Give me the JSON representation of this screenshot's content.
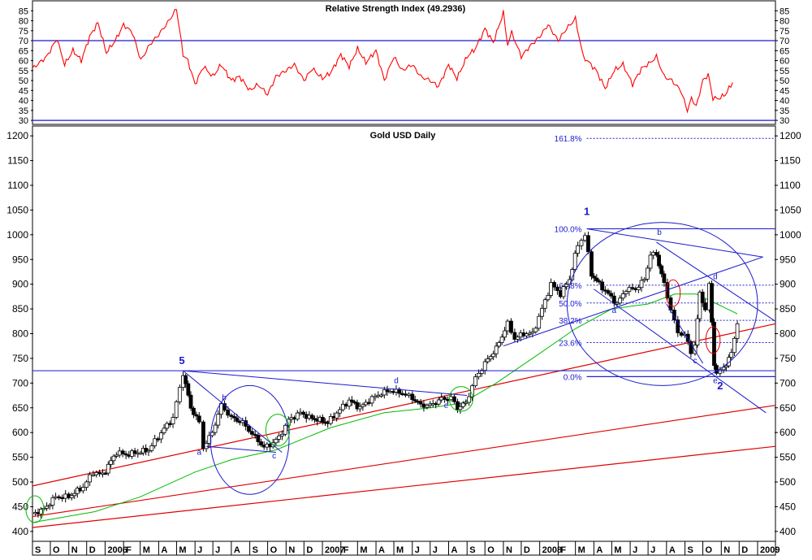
{
  "colors": {
    "frame": "#000000",
    "rsi_line": "#ff0000",
    "guide_blue": "#1a1acc",
    "trend_red": "#e00000",
    "ma_green": "#00bb00",
    "fib_blue": "#2020cc"
  },
  "chart_data": [
    {
      "type": "line",
      "title": "Relative Strength Index (49.2936)",
      "ylim": [
        28,
        90
      ],
      "yticks": [
        "85",
        "80",
        "75",
        "70",
        "65",
        "60",
        "55",
        "50",
        "45",
        "40",
        "35",
        "30"
      ],
      "reference_lines": [
        70,
        30
      ],
      "x_range": [
        "2005-09-01",
        "2009-01-31"
      ],
      "series": [
        {
          "x": [
            "2005-09-01",
            "2005-09-25",
            "2005-10-12",
            "2005-10-25",
            "2005-11-08",
            "2005-11-22",
            "2005-12-06",
            "2005-12-20",
            "2006-01-03",
            "2006-01-18",
            "2006-02-01",
            "2006-02-16",
            "2006-03-02",
            "2006-03-17",
            "2006-04-01",
            "2006-04-16",
            "2006-05-01",
            "2006-05-12",
            "2006-05-20",
            "2006-06-01",
            "2006-06-15",
            "2006-07-01",
            "2006-07-15",
            "2006-08-01",
            "2006-08-15",
            "2006-09-01",
            "2006-09-15",
            "2006-10-01",
            "2006-10-15",
            "2006-11-01",
            "2006-11-15",
            "2006-12-01",
            "2006-12-15",
            "2007-01-01",
            "2007-01-15",
            "2007-02-01",
            "2007-02-15",
            "2007-03-01",
            "2007-03-15",
            "2007-04-01",
            "2007-04-15",
            "2007-05-01",
            "2007-05-15",
            "2007-06-01",
            "2007-06-15",
            "2007-07-01",
            "2007-07-15",
            "2007-08-01",
            "2007-08-15",
            "2007-09-01",
            "2007-09-15",
            "2007-10-01",
            "2007-10-15",
            "2007-11-01",
            "2007-11-08",
            "2007-11-15",
            "2007-12-01",
            "2007-12-15",
            "2008-01-01",
            "2008-01-15",
            "2008-02-01",
            "2008-02-15",
            "2008-03-01",
            "2008-03-14",
            "2008-03-24",
            "2008-04-05",
            "2008-04-20",
            "2008-05-05",
            "2008-05-20",
            "2008-06-05",
            "2008-06-20",
            "2008-07-05",
            "2008-07-15",
            "2008-07-28",
            "2008-08-10",
            "2008-08-25",
            "2008-09-05",
            "2008-09-12",
            "2008-09-20",
            "2008-10-01",
            "2008-10-10",
            "2008-10-18",
            "2008-10-28",
            "2008-11-08",
            "2008-11-20"
          ],
          "values": [
            56,
            62,
            71,
            58,
            65,
            60,
            72,
            79,
            64,
            70,
            78,
            74,
            60,
            68,
            73,
            79,
            86,
            63,
            60,
            48,
            57,
            52,
            58,
            50,
            52,
            45,
            48,
            43,
            52,
            55,
            58,
            50,
            56,
            51,
            54,
            63,
            57,
            66,
            59,
            65,
            50,
            62,
            55,
            58,
            52,
            50,
            47,
            58,
            51,
            62,
            66,
            76,
            69,
            84,
            68,
            74,
            62,
            67,
            72,
            78,
            70,
            76,
            81,
            62,
            59,
            55,
            46,
            55,
            58,
            48,
            56,
            59,
            62,
            52,
            50,
            45,
            35,
            41,
            37,
            50,
            53,
            41,
            41,
            43,
            49
          ]
        }
      ]
    },
    {
      "type": "candlestick",
      "title": "Gold USD Daily",
      "ylim": [
        380,
        1220
      ],
      "yticks": [
        "1200",
        "1150",
        "1100",
        "1050",
        "1000",
        "950",
        "900",
        "850",
        "800",
        "750",
        "700",
        "650",
        "600",
        "550",
        "500",
        "450",
        "400"
      ],
      "x_range": [
        "2005-09-01",
        "2009-01-31"
      ],
      "x_ticks": [
        {
          "date": "2005-09-01",
          "label": "S"
        },
        {
          "date": "2005-10-01",
          "label": "O"
        },
        {
          "date": "2005-11-01",
          "label": "N"
        },
        {
          "date": "2005-12-01",
          "label": "D"
        },
        {
          "date": "2006-01-01",
          "label": "2006"
        },
        {
          "date": "2006-02-01",
          "label": "F"
        },
        {
          "date": "2006-03-01",
          "label": "M"
        },
        {
          "date": "2006-04-01",
          "label": "A"
        },
        {
          "date": "2006-05-01",
          "label": "M"
        },
        {
          "date": "2006-06-01",
          "label": "J"
        },
        {
          "date": "2006-07-01",
          "label": "J"
        },
        {
          "date": "2006-08-01",
          "label": "A"
        },
        {
          "date": "2006-09-01",
          "label": "S"
        },
        {
          "date": "2006-10-01",
          "label": "O"
        },
        {
          "date": "2006-11-01",
          "label": "N"
        },
        {
          "date": "2006-12-01",
          "label": "D"
        },
        {
          "date": "2007-01-01",
          "label": "2007"
        },
        {
          "date": "2007-02-01",
          "label": "F"
        },
        {
          "date": "2007-03-01",
          "label": "M"
        },
        {
          "date": "2007-04-01",
          "label": "A"
        },
        {
          "date": "2007-05-01",
          "label": "M"
        },
        {
          "date": "2007-06-01",
          "label": "J"
        },
        {
          "date": "2007-07-01",
          "label": "J"
        },
        {
          "date": "2007-08-01",
          "label": "A"
        },
        {
          "date": "2007-09-01",
          "label": "S"
        },
        {
          "date": "2007-10-01",
          "label": "O"
        },
        {
          "date": "2007-11-01",
          "label": "N"
        },
        {
          "date": "2007-12-01",
          "label": "D"
        },
        {
          "date": "2008-01-01",
          "label": "2008"
        },
        {
          "date": "2008-02-01",
          "label": "F"
        },
        {
          "date": "2008-03-01",
          "label": "M"
        },
        {
          "date": "2008-04-01",
          "label": "A"
        },
        {
          "date": "2008-05-01",
          "label": "M"
        },
        {
          "date": "2008-06-01",
          "label": "J"
        },
        {
          "date": "2008-07-01",
          "label": "J"
        },
        {
          "date": "2008-08-01",
          "label": "A"
        },
        {
          "date": "2008-09-01",
          "label": "S"
        },
        {
          "date": "2008-10-01",
          "label": "O"
        },
        {
          "date": "2008-11-01",
          "label": "N"
        },
        {
          "date": "2008-12-01",
          "label": "D"
        },
        {
          "date": "2009-01-01",
          "label": "2009"
        }
      ],
      "price_path": {
        "x": [
          "2005-09-01",
          "2005-09-20",
          "2005-10-10",
          "2005-11-01",
          "2005-11-25",
          "2005-12-12",
          "2005-12-28",
          "2006-01-20",
          "2006-02-05",
          "2006-02-25",
          "2006-03-15",
          "2006-04-05",
          "2006-04-25",
          "2006-05-12",
          "2006-05-25",
          "2006-06-08",
          "2006-06-15",
          "2006-06-30",
          "2006-07-15",
          "2006-08-01",
          "2006-08-20",
          "2006-09-10",
          "2006-09-25",
          "2006-10-05",
          "2006-10-20",
          "2006-11-05",
          "2006-11-25",
          "2006-12-10",
          "2006-12-28",
          "2007-01-10",
          "2007-01-25",
          "2007-02-15",
          "2007-03-05",
          "2007-03-20",
          "2007-04-10",
          "2007-04-25",
          "2007-05-15",
          "2007-06-01",
          "2007-06-15",
          "2007-07-01",
          "2007-07-20",
          "2007-08-05",
          "2007-08-16",
          "2007-08-30",
          "2007-09-15",
          "2007-10-01",
          "2007-10-20",
          "2007-11-08",
          "2007-11-20",
          "2007-12-05",
          "2007-12-20",
          "2008-01-05",
          "2008-01-20",
          "2008-02-05",
          "2008-02-20",
          "2008-03-05",
          "2008-03-17",
          "2008-03-28",
          "2008-04-10",
          "2008-04-25",
          "2008-05-10",
          "2008-05-25",
          "2008-06-10",
          "2008-06-25",
          "2008-07-05",
          "2008-07-15",
          "2008-07-28",
          "2008-08-08",
          "2008-08-20",
          "2008-09-01",
          "2008-09-11",
          "2008-09-18",
          "2008-09-26",
          "2008-10-05",
          "2008-10-12",
          "2008-10-20",
          "2008-10-24",
          "2008-11-05",
          "2008-11-18",
          "2008-11-28"
        ],
        "values": [
          435,
          445,
          470,
          470,
          490,
          520,
          515,
          560,
          555,
          560,
          565,
          600,
          630,
          720,
          650,
          620,
          570,
          600,
          655,
          630,
          620,
          590,
          570,
          575,
          590,
          625,
          640,
          630,
          625,
          620,
          640,
          665,
          650,
          665,
          680,
          685,
          680,
          670,
          655,
          655,
          668,
          670,
          650,
          660,
          710,
          740,
          770,
          820,
          790,
          800,
          800,
          850,
          900,
          880,
          910,
          980,
          1000,
          920,
          900,
          880,
          860,
          890,
          890,
          910,
          960,
          960,
          900,
          850,
          800,
          800,
          760,
          780,
          880,
          850,
          900,
          740,
          720,
          730,
          760,
          820
        ]
      },
      "moving_average": {
        "x": [
          "2005-09-01",
          "2005-12-15",
          "2006-03-01",
          "2006-06-01",
          "2006-08-01",
          "2006-10-15",
          "2007-01-15",
          "2007-04-15",
          "2007-07-01",
          "2007-08-25",
          "2007-10-20",
          "2008-01-01",
          "2008-03-01",
          "2008-05-01",
          "2008-07-01",
          "2008-08-15",
          "2008-09-20",
          "2008-10-25",
          "2008-11-28"
        ],
        "values": [
          418,
          440,
          470,
          520,
          545,
          565,
          610,
          640,
          650,
          660,
          700,
          760,
          810,
          850,
          860,
          880,
          880,
          860,
          840
        ]
      },
      "trend_lines_red": [
        {
          "x": [
            "2005-09-01",
            "2009-01-31"
          ],
          "y": [
            492,
            820
          ]
        },
        {
          "x": [
            "2005-09-01",
            "2009-01-31"
          ],
          "y": [
            430,
            655
          ]
        },
        {
          "x": [
            "2005-09-01",
            "2009-01-31"
          ],
          "y": [
            408,
            572
          ]
        }
      ],
      "guide_lines_blue": [
        {
          "x": [
            "2005-09-01",
            "2009-01-31"
          ],
          "y": [
            725,
            725
          ]
        },
        {
          "x": [
            "2006-05-12",
            "2006-10-25"
          ],
          "y": [
            725,
            560
          ]
        },
        {
          "x": [
            "2006-05-12",
            "2007-09-01"
          ],
          "y": [
            725,
            675
          ]
        },
        {
          "x": [
            "2006-06-20",
            "2006-10-15"
          ],
          "y": [
            572,
            560
          ]
        },
        {
          "x": [
            "2007-11-01",
            "2009-01-10"
          ],
          "y": [
            775,
            955
          ]
        },
        {
          "x": [
            "2008-03-20",
            "2009-01-10"
          ],
          "y": [
            1012,
            955
          ]
        },
        {
          "x": [
            "2008-07-15",
            "2009-01-31"
          ],
          "y": [
            985,
            825
          ]
        },
        {
          "x": [
            "2008-04-01",
            "2009-01-15"
          ],
          "y": [
            890,
            640
          ]
        },
        {
          "x": [
            "2008-08-01",
            "2008-10-01"
          ],
          "y": [
            860,
            740
          ]
        },
        {
          "x": [
            "2008-03-20",
            "2009-01-31"
          ],
          "y": [
            1012,
            1012
          ]
        },
        {
          "x": [
            "2008-03-20",
            "2009-01-31"
          ],
          "y": [
            713,
            713
          ]
        }
      ],
      "ellipses_blue": [
        {
          "center": [
            "2006-09-01",
            585
          ],
          "radius_days": 66,
          "radius_price": 110
        },
        {
          "center": [
            "2008-07-25",
            860
          ],
          "radius_days": 160,
          "radius_price": 165
        }
      ],
      "circles_green": [
        {
          "center": [
            "2005-09-05",
            445
          ],
          "radius_days": 15,
          "radius_price": 27
        },
        {
          "center": [
            "2006-10-18",
            605
          ],
          "radius_days": 20,
          "radius_price": 32
        },
        {
          "center": [
            "2007-08-22",
            668
          ],
          "radius_days": 20,
          "radius_price": 25
        }
      ],
      "circles_red": [
        {
          "center": [
            "2008-08-12",
            882
          ],
          "radius_days": 12,
          "radius_price": 27
        },
        {
          "center": [
            "2008-10-18",
            787
          ],
          "radius_days": 12,
          "radius_price": 27
        }
      ],
      "fib_levels": [
        {
          "label": "161.8%",
          "value": 1195
        },
        {
          "label": "100.0%",
          "value": 1012
        },
        {
          "label": "61.8%",
          "value": 898
        },
        {
          "label": "50.0%",
          "value": 862
        },
        {
          "label": "38.2%",
          "value": 827
        },
        {
          "label": "23.6%",
          "value": 782
        },
        {
          "label": "0.0%",
          "value": 713
        }
      ],
      "wave_labels": [
        {
          "text": "5",
          "x": "2006-05-10",
          "y": 738,
          "kind": "major"
        },
        {
          "text": "1",
          "x": "2008-03-20",
          "y": 1040,
          "kind": "major"
        },
        {
          "text": "2",
          "x": "2008-10-30",
          "y": 687,
          "kind": "major"
        },
        {
          "text": "a",
          "x": "2006-06-08",
          "y": 555,
          "kind": "minor"
        },
        {
          "text": "b",
          "x": "2006-07-20",
          "y": 665,
          "kind": "minor"
        },
        {
          "text": "c",
          "x": "2006-10-12",
          "y": 548,
          "kind": "minor"
        },
        {
          "text": "d",
          "x": "2007-05-05",
          "y": 700,
          "kind": "minor"
        },
        {
          "text": "e",
          "x": "2007-07-28",
          "y": 650,
          "kind": "minor"
        },
        {
          "text": "a",
          "x": "2008-05-05",
          "y": 842,
          "kind": "minor"
        },
        {
          "text": "b",
          "x": "2008-07-20",
          "y": 1000,
          "kind": "minor"
        },
        {
          "text": "c",
          "x": "2008-09-18",
          "y": 740,
          "kind": "minor"
        },
        {
          "text": "d",
          "x": "2008-10-22",
          "y": 910,
          "kind": "minor"
        },
        {
          "text": "e",
          "x": "2008-10-22",
          "y": 700,
          "kind": "minor"
        }
      ]
    }
  ]
}
